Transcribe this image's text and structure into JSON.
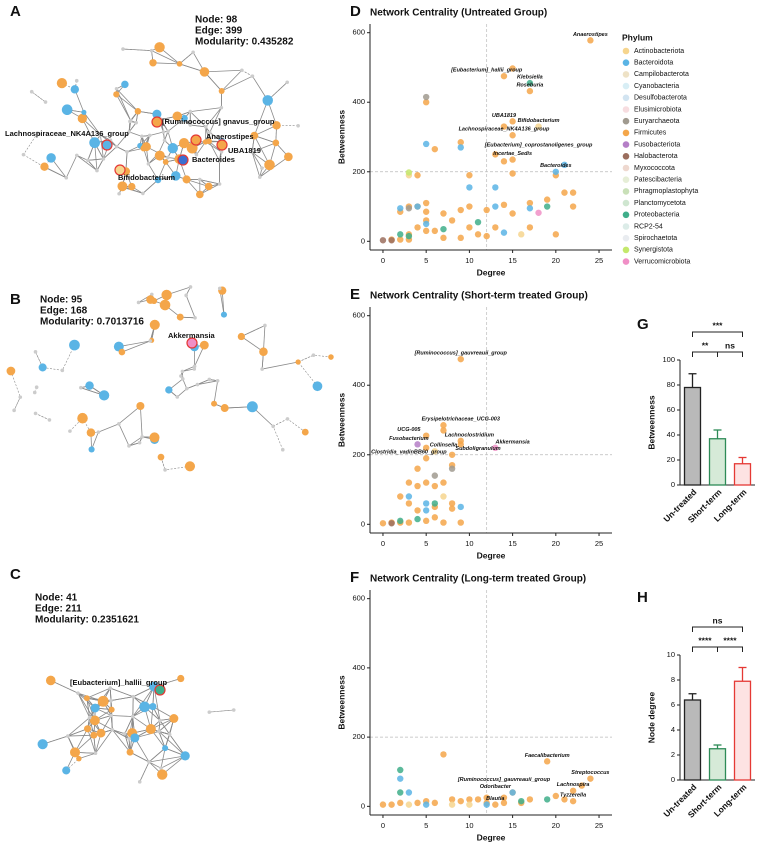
{
  "networks": [
    {
      "panel": "A",
      "stats": [
        "Node: 98",
        "Edge: 399",
        "Modularity: 0.435282"
      ],
      "labels": [
        "Lachnospiraceae_NK4A136_group",
        "[Ruminococcus] gnavus_group",
        "Anaerostipes",
        "UBA1819",
        "Bacteroides",
        "Bifidobacterium"
      ]
    },
    {
      "panel": "B",
      "stats": [
        "Node: 95",
        "Edge: 168",
        "Modularity: 0.7013716"
      ],
      "labels": [
        "Akkermansia"
      ]
    },
    {
      "panel": "C",
      "stats": [
        "Node: 41",
        "Edge: 211",
        "Modularity: 0.2351621"
      ],
      "labels": [
        "[Eubacterium]_hallii_group"
      ]
    }
  ],
  "chart_data": [
    {
      "type": "scatter",
      "panel": "D",
      "title": "Network Centrality (Untreated Group)",
      "x_label": "Degree",
      "y_label": "Betweenness",
      "xlim": [
        -1.5,
        26.5
      ],
      "ylim": [
        -25,
        625
      ],
      "xticks": [
        0,
        5,
        10,
        15,
        20,
        25
      ],
      "yticks": [
        0,
        200,
        400,
        600
      ],
      "vline": 12,
      "hline": 200,
      "legend": {
        "title": "Phylum",
        "items": [
          {
            "name": "Actinobacteriota",
            "color": "#f6d58e"
          },
          {
            "name": "Bacteroidota",
            "color": "#5ab4e5"
          },
          {
            "name": "Campilobacterota",
            "color": "#eee2c6"
          },
          {
            "name": "Cyanobacteria",
            "color": "#d8eef5"
          },
          {
            "name": "Desulfobacterota",
            "color": "#d2e4f1"
          },
          {
            "name": "Elusimicrobiota",
            "color": "#f7dde0"
          },
          {
            "name": "Euryarchaeota",
            "color": "#a09a8f"
          },
          {
            "name": "Firmicutes",
            "color": "#f4a64a"
          },
          {
            "name": "Fusobacteriota",
            "color": "#b57fc7"
          },
          {
            "name": "Halobacterota",
            "color": "#9b6e5e"
          },
          {
            "name": "Myxococcota",
            "color": "#eed8cf"
          },
          {
            "name": "Patescibacteria",
            "color": "#e6eed7"
          },
          {
            "name": "Phragmoplastophyta",
            "color": "#c9e0b8"
          },
          {
            "name": "Planctomycetota",
            "color": "#cfe6d0"
          },
          {
            "name": "Proteobacteria",
            "color": "#3fae8a"
          },
          {
            "name": "RCP2-54",
            "color": "#dcece8"
          },
          {
            "name": "Spirochaetota",
            "color": "#e9ecf0"
          },
          {
            "name": "Synergistota",
            "color": "#c4e86c"
          },
          {
            "name": "Verrucomicrobiota",
            "color": "#f08fc6"
          }
        ]
      },
      "series": [
        {
          "phylum": 7,
          "x": [
            24,
            15,
            14,
            17,
            15,
            14,
            9,
            15,
            13,
            15,
            14,
            6,
            15,
            10,
            20,
            22,
            21,
            19,
            17,
            14,
            12,
            15,
            10,
            9,
            7,
            5,
            5,
            4,
            3,
            2,
            5,
            8,
            10,
            11,
            12,
            9,
            7,
            6,
            5,
            4,
            3,
            2,
            1,
            3,
            13,
            17,
            20,
            22,
            4,
            5
          ],
          "y": [
            578,
            497,
            475,
            432,
            345,
            330,
            285,
            305,
            250,
            235,
            230,
            265,
            195,
            190,
            190,
            140,
            140,
            120,
            110,
            105,
            90,
            80,
            100,
            90,
            80,
            85,
            110,
            100,
            100,
            85,
            60,
            60,
            40,
            20,
            15,
            10,
            10,
            30,
            30,
            40,
            20,
            5,
            5,
            5,
            40,
            40,
            20,
            100,
            190,
            400
          ]
        },
        {
          "phylum": 1,
          "x": [
            5,
            10,
            13,
            21,
            20,
            2,
            4,
            13,
            17,
            14,
            5,
            9
          ],
          "y": [
            280,
            155,
            155,
            220,
            200,
            95,
            100,
            100,
            95,
            25,
            50,
            270
          ]
        },
        {
          "phylum": 14,
          "x": [
            17,
            19,
            11,
            7,
            2,
            3
          ],
          "y": [
            455,
            100,
            55,
            35,
            20,
            15
          ]
        },
        {
          "phylum": 0,
          "x": [
            18,
            3,
            16
          ],
          "y": [
            330,
            190,
            20
          ]
        },
        {
          "phylum": 6,
          "x": [
            5,
            3
          ],
          "y": [
            415,
            95
          ]
        },
        {
          "phylum": 9,
          "x": [
            0,
            1
          ],
          "y": [
            3,
            3
          ]
        },
        {
          "phylum": 17,
          "x": [
            3
          ],
          "y": [
            198
          ]
        },
        {
          "phylum": 18,
          "x": [
            18
          ],
          "y": [
            82
          ]
        }
      ],
      "annotations": [
        {
          "text": "Anaerostipes",
          "phylum": 7,
          "x": 24,
          "y": 578
        },
        {
          "text": "[Eubacterium]_hallii_group",
          "phylum": 7,
          "x": 12,
          "y": 475
        },
        {
          "text": "Klebsiella",
          "phylum": 14,
          "x": 17,
          "y": 455
        },
        {
          "text": "Roseburia",
          "phylum": 7,
          "x": 17,
          "y": 432
        },
        {
          "text": "UBA1819",
          "phylum": 7,
          "x": 14,
          "y": 345
        },
        {
          "text": "Bifidobacterium",
          "phylum": 0,
          "x": 18,
          "y": 330
        },
        {
          "text": "Lachnospiraceae_NK4A136_group",
          "phylum": 7,
          "x": 14,
          "y": 305
        },
        {
          "text": "[Eubacterium]_coprostanoligenes_group",
          "phylum": 7,
          "x": 18,
          "y": 260
        },
        {
          "text": "Incertae_Sedis",
          "phylum": 7,
          "x": 15,
          "y": 235
        },
        {
          "text": "Bacteroides",
          "phylum": 1,
          "x": 20,
          "y": 200
        }
      ]
    },
    {
      "type": "scatter",
      "panel": "E",
      "title": "Network Centrality (Short-term treated Group)",
      "x_label": "Degree",
      "y_label": "Betweenness",
      "xlim": [
        -1.5,
        26.5
      ],
      "ylim": [
        -25,
        625
      ],
      "xticks": [
        0,
        5,
        10,
        15,
        20,
        25
      ],
      "yticks": [
        0,
        200,
        400,
        600
      ],
      "vline": 12,
      "hline": 200,
      "series": [
        {
          "phylum": 7,
          "x": [
            9,
            7,
            7,
            5,
            9,
            9,
            8,
            5,
            5,
            4,
            3,
            5,
            7,
            2,
            3,
            4,
            6,
            8,
            8,
            6,
            5,
            3,
            2,
            1,
            0,
            9,
            7,
            8,
            4,
            6
          ],
          "y": [
            475,
            270,
            285,
            255,
            240,
            230,
            200,
            190,
            220,
            160,
            120,
            120,
            120,
            80,
            60,
            40,
            50,
            60,
            45,
            20,
            10,
            5,
            5,
            5,
            3,
            5,
            5,
            170,
            110,
            110
          ]
        },
        {
          "phylum": 8,
          "x": [
            4
          ],
          "y": [
            230
          ]
        },
        {
          "phylum": 18,
          "x": [
            13
          ],
          "y": [
            220
          ]
        },
        {
          "phylum": 0,
          "x": [
            6,
            7
          ],
          "y": [
            210,
            80
          ]
        },
        {
          "phylum": 6,
          "x": [
            8,
            6
          ],
          "y": [
            160,
            140
          ]
        },
        {
          "phylum": 1,
          "x": [
            3,
            5,
            9,
            5
          ],
          "y": [
            80,
            60,
            50,
            40
          ]
        },
        {
          "phylum": 14,
          "x": [
            4,
            2,
            6
          ],
          "y": [
            15,
            10,
            60
          ]
        },
        {
          "phylum": 9,
          "x": [
            1
          ],
          "y": [
            3
          ]
        }
      ],
      "annotations": [
        {
          "text": "[Ruminococcus]_gauvreauii_group",
          "phylum": 7,
          "x": 9,
          "y": 475
        },
        {
          "text": "Erysipelotrichaceae_UCG-003",
          "phylum": 7,
          "x": 9,
          "y": 285
        },
        {
          "text": "UCG-005",
          "phylum": 7,
          "x": 3,
          "y": 255
        },
        {
          "text": "Fusobacterium",
          "phylum": 8,
          "x": 3,
          "y": 230
        },
        {
          "text": "Lachnoclostridium",
          "phylum": 7,
          "x": 10,
          "y": 240
        },
        {
          "text": "Akkermansia",
          "phylum": 18,
          "x": 15,
          "y": 220
        },
        {
          "text": "Collinsella",
          "phylum": 0,
          "x": 7,
          "y": 210
        },
        {
          "text": "Subdoligranulum",
          "phylum": 7,
          "x": 11,
          "y": 200
        },
        {
          "text": "Clostridia_vadinBB60_group",
          "phylum": 7,
          "x": 3,
          "y": 190
        }
      ]
    },
    {
      "type": "scatter",
      "panel": "F",
      "title": "Network Centrality (Long-term treated Group)",
      "x_label": "Degree",
      "y_label": "Betweenness",
      "xlim": [
        -1.5,
        26.5
      ],
      "ylim": [
        -25,
        625
      ],
      "xticks": [
        0,
        5,
        10,
        15,
        20,
        25
      ],
      "yticks": [
        0,
        200,
        400,
        600
      ],
      "vline": 12,
      "hline": 200,
      "series": [
        {
          "phylum": 7,
          "x": [
            7,
            19,
            24,
            23,
            22,
            20,
            21,
            22,
            12,
            13,
            15,
            17,
            11,
            10,
            9,
            8,
            6,
            5,
            4,
            2,
            1,
            0,
            14,
            16,
            12,
            14
          ],
          "y": [
            150,
            130,
            80,
            60,
            45,
            30,
            20,
            15,
            10,
            5,
            40,
            20,
            20,
            20,
            15,
            20,
            10,
            15,
            10,
            10,
            5,
            5,
            10,
            10,
            25,
            25
          ]
        },
        {
          "phylum": 1,
          "x": [
            2,
            3,
            5,
            15,
            12
          ],
          "y": [
            80,
            40,
            5,
            40,
            5
          ]
        },
        {
          "phylum": 14,
          "x": [
            2,
            2,
            16,
            19
          ],
          "y": [
            105,
            40,
            15,
            20
          ]
        },
        {
          "phylum": 0,
          "x": [
            3,
            8,
            10
          ],
          "y": [
            5,
            5,
            5
          ]
        }
      ],
      "annotations": [
        {
          "text": "Faecalibacterium",
          "phylum": 7,
          "x": 19,
          "y": 130
        },
        {
          "text": "Streptococcus",
          "phylum": 7,
          "x": 24,
          "y": 80
        },
        {
          "text": "[Ruminococcus]_gauvreauii_group",
          "phylum": 7,
          "x": 14,
          "y": 60
        },
        {
          "text": "Odoribacter",
          "phylum": 1,
          "x": 13,
          "y": 40
        },
        {
          "text": "Lachnospira",
          "phylum": 7,
          "x": 22,
          "y": 45
        },
        {
          "text": "Blautia",
          "phylum": 7,
          "x": 13,
          "y": 5
        },
        {
          "text": "Tyzzerella",
          "phylum": 7,
          "x": 22,
          "y": 15
        }
      ]
    },
    {
      "type": "bar",
      "panel": "G",
      "y_label": "Betweenness",
      "categories": [
        "Un-treated",
        "Short-term",
        "Long-term"
      ],
      "values": [
        78,
        37,
        17
      ],
      "errors": [
        11,
        7,
        5
      ],
      "colors": [
        "#b9b9b9",
        "#d6ead8",
        "#fde3e3"
      ],
      "edge_colors": [
        "#222222",
        "#2e8b57",
        "#e53935"
      ],
      "ylim": [
        0,
        100
      ],
      "yticks": [
        0,
        20,
        40,
        60,
        80,
        100
      ],
      "comparisons": [
        {
          "pair": [
            0,
            1
          ],
          "label": "**"
        },
        {
          "pair": [
            1,
            2
          ],
          "label": "ns"
        },
        {
          "pair": [
            0,
            2
          ],
          "label": "***"
        }
      ]
    },
    {
      "type": "bar",
      "panel": "H",
      "y_label": "Node degree",
      "categories": [
        "Un-treated",
        "Short-term",
        "Long-term"
      ],
      "values": [
        6.4,
        2.5,
        7.9
      ],
      "errors": [
        0.5,
        0.3,
        1.1
      ],
      "colors": [
        "#b9b9b9",
        "#d6ead8",
        "#fde3e3"
      ],
      "edge_colors": [
        "#222222",
        "#2e8b57",
        "#e53935"
      ],
      "ylim": [
        0,
        10
      ],
      "yticks": [
        0,
        2,
        4,
        6,
        8,
        10
      ],
      "comparisons": [
        {
          "pair": [
            0,
            1
          ],
          "label": "****"
        },
        {
          "pair": [
            1,
            2
          ],
          "label": "****"
        },
        {
          "pair": [
            0,
            2
          ],
          "label": "ns"
        }
      ]
    }
  ]
}
